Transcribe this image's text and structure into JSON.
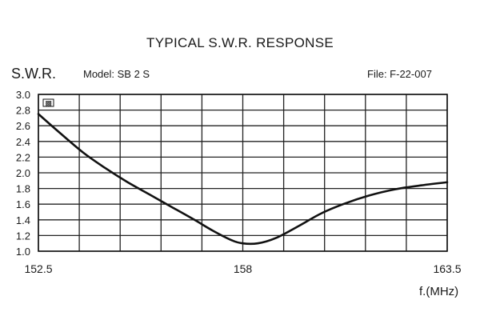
{
  "chart_data": {
    "type": "line",
    "title": "TYPICAL S.W.R. RESPONSE",
    "ylabel": "S.W.R.",
    "xlabel": "f.(MHz)",
    "model_text": "Model:  SB 2 S",
    "file_text": "File:  F-22-007",
    "corner_mark": "▩",
    "xlim": [
      152.5,
      163.5
    ],
    "ylim": [
      1.0,
      3.0
    ],
    "x_ticks": [
      152.5,
      158,
      163.5
    ],
    "x_tick_labels": [
      "152.5",
      "158",
      "163.5"
    ],
    "y_ticks": [
      1.0,
      1.2,
      1.4,
      1.6,
      1.8,
      2.0,
      2.2,
      2.4,
      2.6,
      2.8,
      3.0
    ],
    "y_tick_labels": [
      "1.0",
      "1.2",
      "1.4",
      "1.6",
      "1.8",
      "2.0",
      "2.2",
      "2.4",
      "2.6",
      "2.8",
      "3.0"
    ],
    "grid": true,
    "grid_columns": 10,
    "series": [
      {
        "color": "#111111",
        "x": [
          152.5,
          153.1,
          153.7,
          154.3,
          154.9,
          155.5,
          156.1,
          156.7,
          157.2,
          157.7,
          158.0,
          158.4,
          158.9,
          159.5,
          160.1,
          160.7,
          161.4,
          162.1,
          162.8,
          163.5
        ],
        "y": [
          2.75,
          2.5,
          2.26,
          2.06,
          1.88,
          1.72,
          1.56,
          1.4,
          1.26,
          1.14,
          1.1,
          1.1,
          1.17,
          1.32,
          1.48,
          1.6,
          1.71,
          1.79,
          1.84,
          1.88
        ]
      }
    ]
  }
}
